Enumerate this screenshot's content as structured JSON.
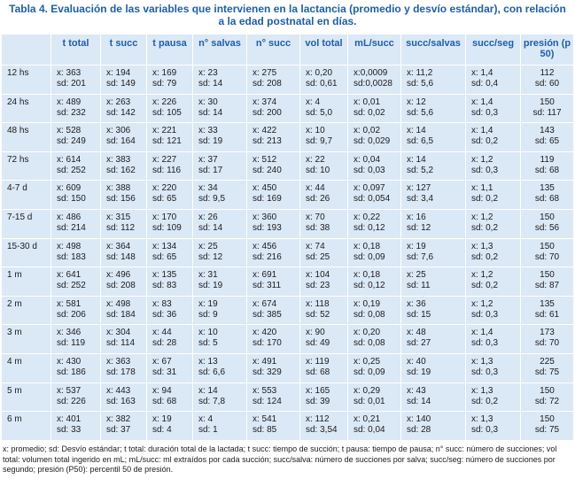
{
  "header": {
    "title": "Tabla 4. Evaluación de las variables que intervienen en la lactancia (promedio y desvío estándar), con relación a la edad postnatal en días."
  },
  "table": {
    "columns": [
      "t total",
      "t succ",
      "t pausa",
      "n° salvas",
      "n° succ",
      "vol total",
      "mL/succ",
      "succ/salvas",
      "succ/seg",
      "presión (p 50)"
    ],
    "rows": [
      {
        "label": "12 hs",
        "cells": [
          [
            "x: 363",
            "sd: 201"
          ],
          [
            "x: 194",
            "sd: 149"
          ],
          [
            "x: 169",
            "sd: 79"
          ],
          [
            "x: 23",
            "sd: 14"
          ],
          [
            "x: 275",
            "sd: 208"
          ],
          [
            "x: 0,20",
            "sd: 0,61"
          ],
          [
            "x:0,0009",
            "sd:0,0028"
          ],
          [
            "x: 11,2",
            "sd: 5,6"
          ],
          [
            "x: 1,4",
            "sd: 0,4"
          ],
          [
            "112",
            "sd: 60"
          ]
        ]
      },
      {
        "label": "24 hs",
        "cells": [
          [
            "x: 489",
            "sd: 232"
          ],
          [
            "x: 263",
            "sd: 142"
          ],
          [
            "x: 226",
            "sd: 105"
          ],
          [
            "x: 30",
            "sd: 14"
          ],
          [
            "x: 374",
            "sd: 200"
          ],
          [
            "x: 4",
            "sd: 5,0"
          ],
          [
            "x: 0,01",
            "sd: 0,02"
          ],
          [
            "x: 12",
            "sd: 5,6"
          ],
          [
            "x: 1,4",
            "sd: 0,3"
          ],
          [
            "150",
            "sd: 117"
          ]
        ]
      },
      {
        "label": "48 hs",
        "cells": [
          [
            "x: 528",
            "sd: 249"
          ],
          [
            "x: 306",
            "sd: 164"
          ],
          [
            "x: 221",
            "sd: 121"
          ],
          [
            "x: 33",
            "sd: 19"
          ],
          [
            "x: 422",
            "sd: 213"
          ],
          [
            "x: 10",
            "sd: 9,7"
          ],
          [
            "x: 0,02",
            "sd: 0,029"
          ],
          [
            "x: 14",
            "sd: 6,5"
          ],
          [
            "x: 1,4",
            "sd: 0,2"
          ],
          [
            "143",
            "sd: 65"
          ]
        ]
      },
      {
        "label": "72 hs",
        "cells": [
          [
            "x: 614",
            "sd: 252"
          ],
          [
            "x: 383",
            "sd: 162"
          ],
          [
            "x: 227",
            "sd: 116"
          ],
          [
            "x: 37",
            "sd: 17"
          ],
          [
            "x: 512",
            "sd: 240"
          ],
          [
            "x: 22",
            "sd: 10"
          ],
          [
            "x: 0,04",
            "sd: 0,03"
          ],
          [
            "x: 14",
            "sd: 5,2"
          ],
          [
            "x: 1,2",
            "sd: 0,3"
          ],
          [
            "119",
            "sd: 68"
          ]
        ]
      },
      {
        "label": "4-7 d",
        "cells": [
          [
            "x: 609",
            "sd: 150"
          ],
          [
            "x: 388",
            "sd: 156"
          ],
          [
            "x: 220",
            "sd: 65"
          ],
          [
            "x: 34",
            "sd: 9,5"
          ],
          [
            "x: 450",
            "sd: 169"
          ],
          [
            "x: 44",
            "sd: 26"
          ],
          [
            "x: 0,097",
            "sd: 0,054"
          ],
          [
            "x: 127",
            "sd: 3,4"
          ],
          [
            "x: 1,1",
            "sd: 0,2"
          ],
          [
            "135",
            "sd: 68"
          ]
        ]
      },
      {
        "label": "7-15 d",
        "cells": [
          [
            "x: 486",
            "sd: 214"
          ],
          [
            "x: 315",
            "sd: 112"
          ],
          [
            "x: 170",
            "sd: 109"
          ],
          [
            "x: 26",
            "sd: 14"
          ],
          [
            "x: 360",
            "sd: 193"
          ],
          [
            "x: 70",
            "sd: 38"
          ],
          [
            "x: 0,22",
            "sd: 0,12"
          ],
          [
            "x: 16",
            "sd: 12"
          ],
          [
            "x: 1,2",
            "sd: 0,2"
          ],
          [
            "150",
            "sd: 56"
          ]
        ]
      },
      {
        "label": "15-30 d",
        "cells": [
          [
            "x: 498",
            "sd: 183"
          ],
          [
            "x: 364",
            "sd: 148"
          ],
          [
            "x: 134",
            "sd: 65"
          ],
          [
            "x: 25",
            "sd: 12"
          ],
          [
            "x: 456",
            "sd: 216"
          ],
          [
            "x: 74",
            "sd: 25"
          ],
          [
            "x: 0,18",
            "sd: 0,09"
          ],
          [
            "x: 19",
            "sd: 7,6"
          ],
          [
            "x: 1,3",
            "sd: 0,2"
          ],
          [
            "150",
            "sd: 70"
          ]
        ]
      },
      {
        "label": "1 m",
        "cells": [
          [
            "x: 641",
            "sd: 252"
          ],
          [
            "x: 496",
            "sd: 208"
          ],
          [
            "x: 135",
            "sd: 83"
          ],
          [
            "x: 31",
            "sd: 19"
          ],
          [
            "x: 691",
            "sd: 311"
          ],
          [
            "x: 104",
            "sd: 23"
          ],
          [
            "x: 0,18",
            "sd: 0,12"
          ],
          [
            "x: 25",
            "sd: 11"
          ],
          [
            "x: 1,2",
            "sd: 0,2"
          ],
          [
            "150",
            "sd: 87"
          ]
        ]
      },
      {
        "label": "2 m",
        "cells": [
          [
            "x: 581",
            "sd: 206"
          ],
          [
            "x: 498",
            "sd: 184"
          ],
          [
            "x: 83",
            "sd: 36"
          ],
          [
            "x: 19",
            "sd: 9"
          ],
          [
            "x: 674",
            "sd: 385"
          ],
          [
            "x: 118",
            "sd: 52"
          ],
          [
            "x: 0,19",
            "sd: 0,08"
          ],
          [
            "x: 36",
            "sd: 15"
          ],
          [
            "x: 1,2",
            "sd: 0,3"
          ],
          [
            "135",
            "sd: 61"
          ]
        ]
      },
      {
        "label": "3 m",
        "cells": [
          [
            "x: 346",
            "sd: 119"
          ],
          [
            "x: 304",
            "sd: 114"
          ],
          [
            "x: 44",
            "sd: 28"
          ],
          [
            "x: 10",
            "sd: 5"
          ],
          [
            "x: 420",
            "sd: 170"
          ],
          [
            "x: 90",
            "sd: 49"
          ],
          [
            "x: 0,20",
            "sd: 0,08"
          ],
          [
            "x: 48",
            "sd: 27"
          ],
          [
            "x: 1,4",
            "sd: 0,3"
          ],
          [
            "173",
            "sd: 70"
          ]
        ]
      },
      {
        "label": "4 m",
        "cells": [
          [
            "x: 430",
            "sd: 186"
          ],
          [
            "x: 363",
            "sd: 178"
          ],
          [
            "x: 67",
            "sd: 31"
          ],
          [
            "x: 13",
            "sd: 6,6"
          ],
          [
            "x: 491",
            "sd: 329"
          ],
          [
            "x: 119",
            "sd: 68"
          ],
          [
            "x: 0,25",
            "sd: 0,09"
          ],
          [
            "x: 40",
            "sd: 19"
          ],
          [
            "x: 1,3",
            "sd: 0,3"
          ],
          [
            "225",
            "sd: 75"
          ]
        ]
      },
      {
        "label": "5 m",
        "cells": [
          [
            "x: 537",
            "sd: 226"
          ],
          [
            "x: 443",
            "sd: 163"
          ],
          [
            "x: 94",
            "sd: 68"
          ],
          [
            "x: 14",
            "sd: 7,8"
          ],
          [
            "x: 553",
            "sd: 124"
          ],
          [
            "x: 165",
            "sd: 39"
          ],
          [
            "x: 0,29",
            "sd: 0,01"
          ],
          [
            "x: 43",
            "sd: 14"
          ],
          [
            "x: 1,3",
            "sd: 0,2"
          ],
          [
            "150",
            "sd: 72"
          ]
        ]
      },
      {
        "label": "6 m",
        "cells": [
          [
            "x: 401",
            "sd: 33"
          ],
          [
            "x: 382",
            "sd: 37"
          ],
          [
            "x: 19",
            "sd: 4"
          ],
          [
            "x: 4",
            "sd: 1"
          ],
          [
            "x: 541",
            "sd: 85"
          ],
          [
            "x: 112",
            "sd: 3,54"
          ],
          [
            "x: 0,21",
            "sd: 0,04"
          ],
          [
            "x: 140",
            "sd: 28"
          ],
          [
            "x: 1,3",
            "sd: 0,3"
          ],
          [
            "150",
            "sd: 75"
          ]
        ]
      }
    ]
  },
  "footnote": "x: promedio; sd: Desvío estándar; t total: duración total de la lactada; t succ: tiempo de succión; t pausa: tiempo de pausa; n° succ: número de succiones; vol total: volumen total ingerido en mL; mL/succ: ml extraídos por cada succión; succ/salva: número de succiones por salva; succ/seg: número de succiones por segundo; presión (P50): percentil 50 de presión."
}
